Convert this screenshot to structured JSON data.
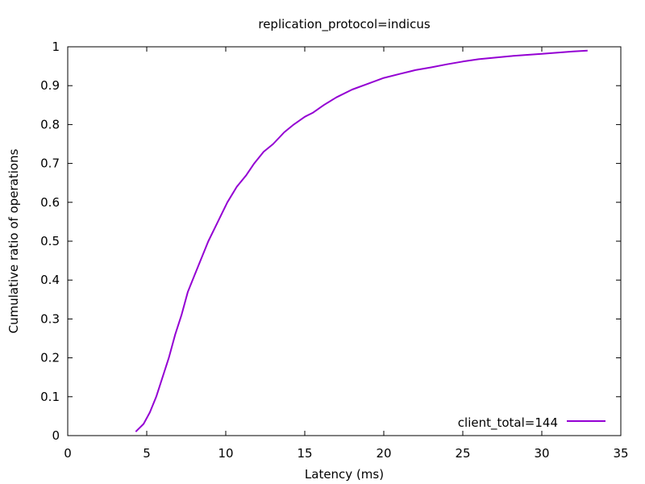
{
  "chart_data": {
    "type": "line",
    "title": "replication_protocol=indicus",
    "xlabel": "Latency (ms)",
    "ylabel": "Cumulative ratio of operations",
    "xlim": [
      0,
      35
    ],
    "ylim": [
      0,
      1
    ],
    "x_ticks": [
      "0",
      "5",
      "10",
      "15",
      "20",
      "25",
      "30",
      "35"
    ],
    "y_ticks": [
      "0",
      "0.1",
      "0.2",
      "0.3",
      "0.4",
      "0.5",
      "0.6",
      "0.7",
      "0.8",
      "0.9",
      "1"
    ],
    "grid": false,
    "legend_position": "bottom-right",
    "colors": {
      "series": "#9400d3",
      "axes": "#000000",
      "background": "#ffffff"
    },
    "series": [
      {
        "name": "client_total=144",
        "x": [
          4.3,
          4.8,
          5.2,
          5.6,
          6.0,
          6.4,
          6.8,
          7.2,
          7.6,
          8.0,
          8.4,
          8.9,
          9.5,
          10.1,
          10.7,
          11.3,
          11.8,
          12.4,
          13.0,
          13.7,
          14.3,
          15.0,
          15.5,
          16.2,
          17.0,
          18.0,
          19.0,
          20.0,
          21.0,
          22.0,
          23.0,
          24.0,
          25.0,
          26.0,
          27.0,
          28.0,
          29.0,
          30.0,
          31.0,
          32.0,
          32.9
        ],
        "y": [
          0.01,
          0.03,
          0.06,
          0.1,
          0.15,
          0.2,
          0.26,
          0.31,
          0.37,
          0.41,
          0.45,
          0.5,
          0.55,
          0.6,
          0.64,
          0.67,
          0.7,
          0.73,
          0.75,
          0.78,
          0.8,
          0.82,
          0.83,
          0.85,
          0.87,
          0.89,
          0.905,
          0.92,
          0.93,
          0.94,
          0.947,
          0.955,
          0.962,
          0.968,
          0.972,
          0.976,
          0.979,
          0.982,
          0.985,
          0.988,
          0.99
        ]
      }
    ]
  }
}
